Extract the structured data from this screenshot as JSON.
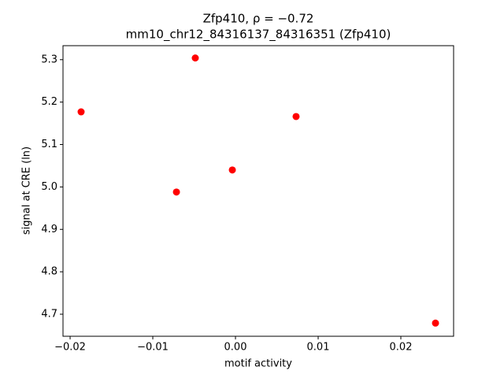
{
  "chart_data": {
    "type": "scatter",
    "title": "Zfp410, ρ = −0.72",
    "subtitle": "mm10_chr12_84316137_84316351 (Zfp410)",
    "x_label": "motif activity",
    "y_label": "signal at CRE (ln)",
    "x": [
      -0.01867,
      -0.00486,
      -0.00714,
      -0.00038,
      0.00733,
      0.02419
    ],
    "values": [
      5.177,
      5.304,
      4.988,
      5.04,
      5.166,
      4.679
    ],
    "color": "#ff0000",
    "xlim": [
      -0.02086,
      0.02638
    ],
    "ylim": [
      4.648,
      5.333
    ],
    "xticks": [
      {
        "value": -0.02,
        "label": "−0.02"
      },
      {
        "value": -0.01,
        "label": "−0.01"
      },
      {
        "value": 0,
        "label": "0.00"
      },
      0.01,
      0.02
    ],
    "yticks": [
      4.7,
      4.8,
      4.9,
      {
        "value": 5,
        "label": "5.0"
      },
      5.1,
      5.2,
      5.3
    ],
    "grid": false
  }
}
